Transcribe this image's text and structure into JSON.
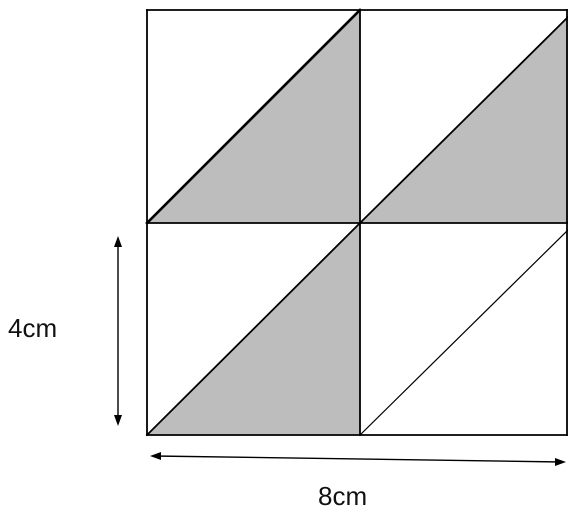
{
  "figure": {
    "labels": {
      "height": "4cm",
      "width": "8cm"
    },
    "colors": {
      "shade": "#bdbdbd",
      "line": "#000000",
      "background": "#ffffff"
    },
    "grid": {
      "rows": 2,
      "cols": 2,
      "shaded_cells": [
        "top-left",
        "top-right",
        "bottom-left"
      ],
      "unshaded_cells": [
        "bottom-right"
      ]
    }
  }
}
